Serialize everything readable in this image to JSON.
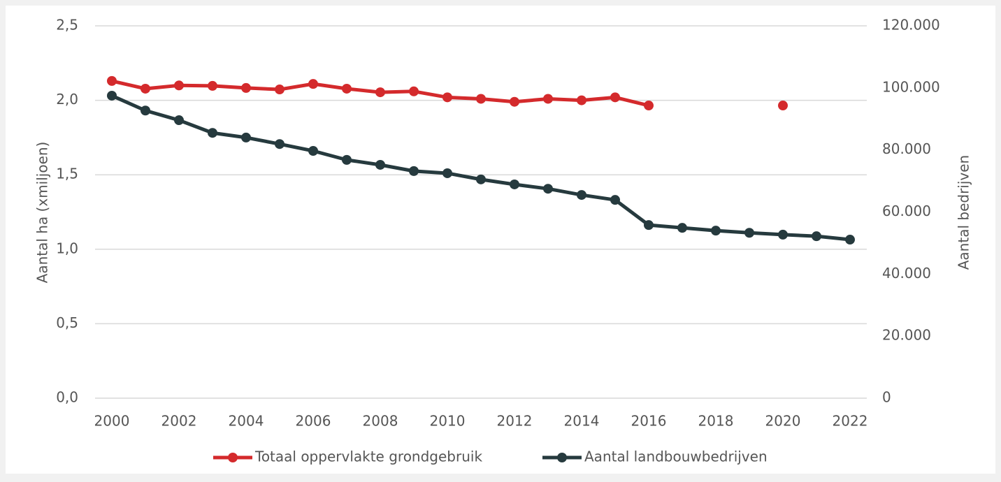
{
  "chart_data": {
    "type": "line",
    "x": [
      2000,
      2001,
      2002,
      2003,
      2004,
      2005,
      2006,
      2007,
      2008,
      2009,
      2010,
      2011,
      2012,
      2013,
      2014,
      2015,
      2016,
      2017,
      2018,
      2019,
      2020,
      2021,
      2022
    ],
    "xlim": [
      1999.5,
      2022.5
    ],
    "xticks": [
      2000,
      2002,
      2004,
      2006,
      2008,
      2010,
      2012,
      2014,
      2016,
      2018,
      2020,
      2022
    ],
    "ylabel": "Aantal ha (xmiljoen)",
    "y2label": "Aantal bedrijven",
    "ylim": [
      0,
      2.5
    ],
    "yticks": [
      {
        "value": 0,
        "label": "0,0"
      },
      {
        "value": 0.5,
        "label": "0,5"
      },
      {
        "value": 1,
        "label": "1,0"
      },
      {
        "value": 1.5,
        "label": "1,5"
      },
      {
        "value": 2,
        "label": "2,0"
      },
      {
        "value": 2.5,
        "label": "2,5"
      }
    ],
    "y2lim": [
      0,
      120000
    ],
    "y2ticks": [
      0,
      {
        "value": 20000,
        "label": "20.000"
      },
      {
        "value": 40000,
        "label": "40.000"
      },
      {
        "value": 60000,
        "label": "60.000"
      },
      {
        "value": 80000,
        "label": "80.000"
      },
      {
        "value": 100000,
        "label": "100.000"
      },
      {
        "value": 120000,
        "label": "120.000"
      }
    ],
    "grid": true,
    "legend": "bottom",
    "series": [
      {
        "name": "Totaal oppervlakte grondgebruik",
        "color": "#d42a2c",
        "values": [
          2.13,
          2.078,
          2.1,
          2.097,
          2.083,
          2.073,
          2.11,
          2.078,
          2.054,
          2.06,
          2.02,
          2.01,
          1.99,
          2.01,
          2.0,
          2.02,
          1.965,
          null,
          null,
          null,
          1.965,
          null,
          null
        ]
      },
      {
        "name": "Aantal landbouwbedrijven",
        "color": "#263a3e",
        "axis": "y2",
        "values": [
          97500,
          92700,
          89600,
          85500,
          84000,
          81900,
          79700,
          76800,
          75200,
          73200,
          72500,
          70500,
          68900,
          67500,
          65500,
          63900,
          55800,
          54900,
          54000,
          53300,
          52700,
          52200,
          51100
        ]
      }
    ]
  }
}
